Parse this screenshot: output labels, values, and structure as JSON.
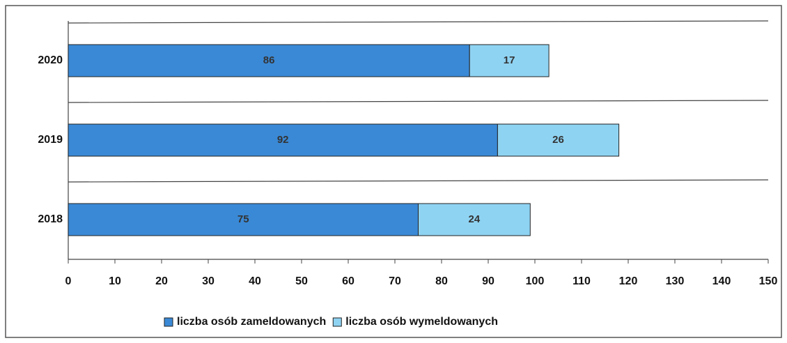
{
  "chart_data": {
    "type": "bar",
    "orientation": "horizontal",
    "stacked": true,
    "categories": [
      "2018",
      "2019",
      "2020"
    ],
    "series": [
      {
        "name": "liczba osób zameldowanych",
        "color": "#3a89d6",
        "values": [
          75,
          92,
          86
        ]
      },
      {
        "name": "liczba osób wymeldowanych",
        "color": "#8fd3f2",
        "values": [
          24,
          26,
          17
        ]
      }
    ],
    "xlim": [
      0,
      150
    ],
    "xticks": [
      0,
      10,
      20,
      30,
      40,
      50,
      60,
      70,
      80,
      90,
      100,
      110,
      120,
      130,
      140,
      150
    ],
    "legend": "bottom"
  }
}
